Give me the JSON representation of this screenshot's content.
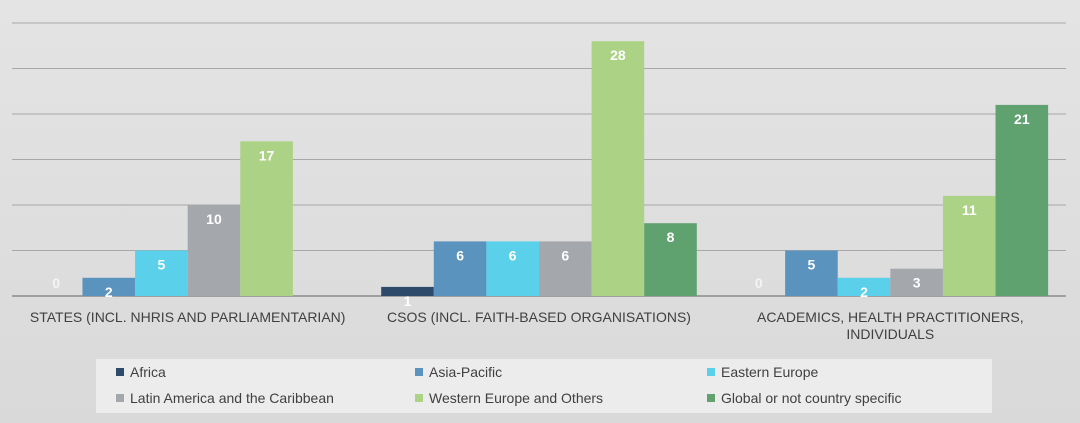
{
  "chart_data": {
    "type": "bar",
    "title": "",
    "xlabel": "",
    "ylabel": "",
    "ylim": [
      0,
      30
    ],
    "gridlines": [
      0,
      5,
      10,
      15,
      20,
      25,
      30
    ],
    "grid": true,
    "legend_position": "bottom",
    "categories": [
      [
        "STATES (INCL. NHRIS AND PARLIAMENTARIAN)"
      ],
      [
        "CSOS (INCL. FAITH-BASED ORGANISATIONS)"
      ],
      [
        "ACADEMICS, HEALTH PRACTITIONERS,",
        "INDIVIDUALS"
      ]
    ],
    "series": [
      {
        "name": "Africa",
        "color": "#2e4a6b",
        "values": [
          0,
          1,
          0
        ]
      },
      {
        "name": "Asia-Pacific",
        "color": "#5b93bf",
        "values": [
          2,
          6,
          5
        ]
      },
      {
        "name": "Eastern Europe",
        "color": "#5ad0ea",
        "values": [
          5,
          6,
          2
        ]
      },
      {
        "name": "Latin America and the Caribbean",
        "color": "#a4a8ad",
        "values": [
          10,
          6,
          3
        ]
      },
      {
        "name": "Western Europe and Others",
        "color": "#acd285",
        "values": [
          17,
          28,
          11
        ]
      },
      {
        "name": "Global or not country specific",
        "color": "#5fa270",
        "values": [
          null,
          8,
          21
        ]
      }
    ]
  }
}
